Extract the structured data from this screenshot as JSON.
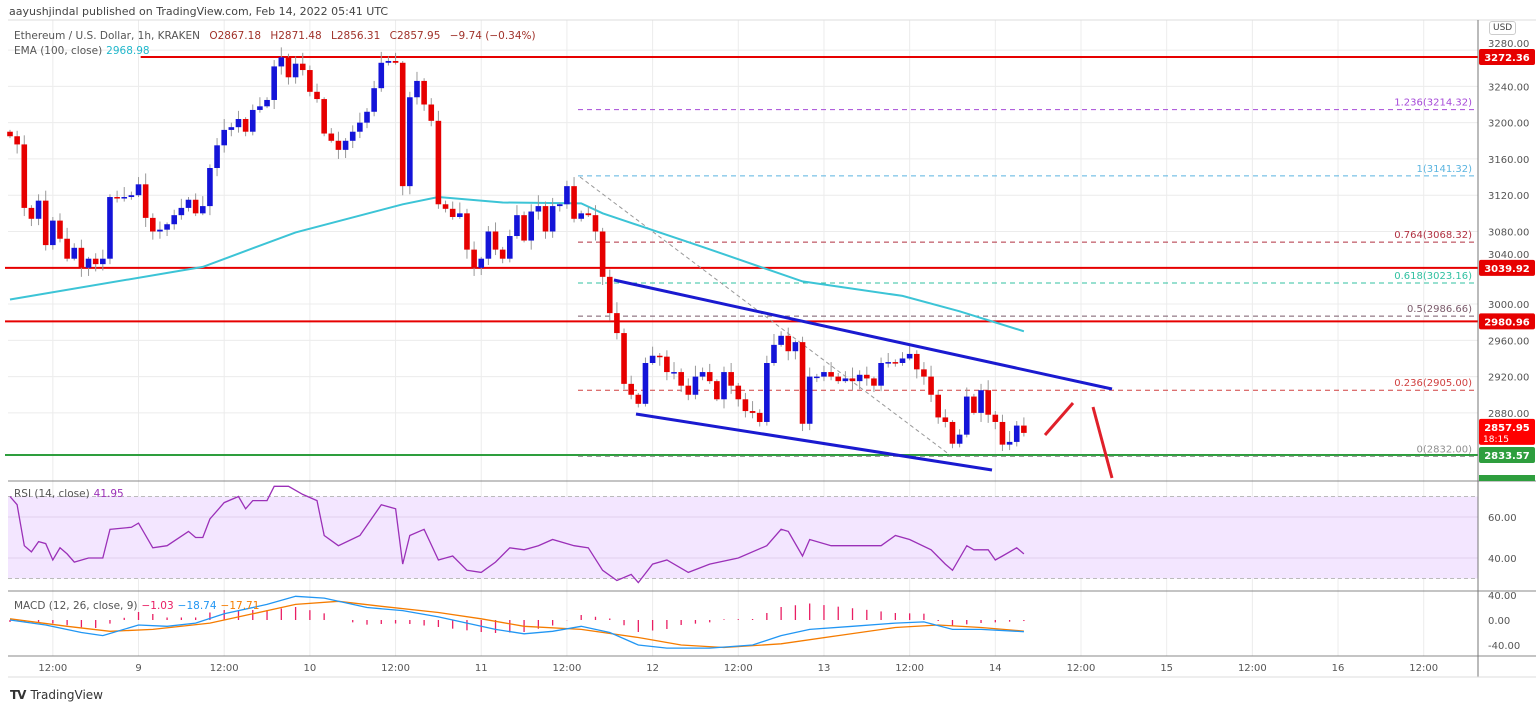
{
  "published": "aayushjindal published on TradingView.com, Feb 14, 2022 05:41 UTC",
  "legend": {
    "symbol": "Ethereum / U.S. Dollar, 1h, KRAKEN",
    "open": "O2867.18",
    "high": "H2871.48",
    "low": "L2856.31",
    "close": "C2857.95",
    "change": "−9.74 (−0.34%)",
    "ema_label": "EMA (100, close)",
    "ema_value": "2968.98"
  },
  "currency": "USD",
  "footer": {
    "brand": "TradingView",
    "logo": "TV"
  },
  "colors": {
    "up": "#1414d8",
    "down": "#e60000",
    "ema": "#3cc4d6",
    "rsi": "#9b30b8",
    "macd": "#2196f3",
    "signal": "#f57c00",
    "hist": "#e91e63",
    "level": "#e60000",
    "support": "#2e9e3e",
    "channel": "#1a1ad0"
  },
  "chart_data": {
    "type": "candlestick",
    "title": "Ethereum / U.S. Dollar, 1h, KRAKEN",
    "interval": "1h",
    "first_open": 3190,
    "closes": [
      3185,
      3176,
      3106,
      3094,
      3114,
      3065,
      3092,
      3072,
      3050,
      3062,
      3040,
      3050,
      3044,
      3050,
      3118,
      3117,
      3118,
      3120,
      3132,
      3095,
      3080,
      3082,
      3088,
      3098,
      3106,
      3115,
      3100,
      3108,
      3150,
      3175,
      3192,
      3195,
      3204,
      3190,
      3214,
      3218,
      3225,
      3262,
      3272,
      3250,
      3265,
      3258,
      3234,
      3226,
      3188,
      3180,
      3170,
      3180,
      3190,
      3200,
      3212,
      3238,
      3266,
      3268,
      3266,
      3130,
      3228,
      3246,
      3220,
      3202,
      3110,
      3105,
      3096,
      3100,
      3060,
      3040,
      3050,
      3080,
      3060,
      3050,
      3075,
      3098,
      3070,
      3102,
      3108,
      3080,
      3108,
      3110,
      3130,
      3094,
      3100,
      3098,
      3080,
      3030,
      2990,
      2968,
      2912,
      2900,
      2890,
      2935,
      2943,
      2942,
      2925,
      2925,
      2910,
      2900,
      2920,
      2925,
      2915,
      2895,
      2925,
      2910,
      2895,
      2882,
      2880,
      2870,
      2935,
      2955,
      2965,
      2948,
      2958,
      2868,
      2920,
      2920,
      2925,
      2920,
      2915,
      2918,
      2915,
      2922,
      2918,
      2910,
      2935,
      2936,
      2935,
      2940,
      2945,
      2928,
      2920,
      2900,
      2875,
      2870,
      2846,
      2856,
      2898,
      2880,
      2905,
      2878,
      2870,
      2845,
      2848,
      2866,
      2857.95
    ],
    "ema100": [
      [
        0,
        3005
      ],
      [
        27,
        3041
      ],
      [
        40,
        3079
      ],
      [
        55,
        3110
      ],
      [
        60,
        3118
      ],
      [
        69,
        3112
      ],
      [
        80,
        3111
      ],
      [
        83,
        3100
      ],
      [
        97,
        3063
      ],
      [
        111,
        3025
      ],
      [
        125,
        3009
      ],
      [
        133,
        2992
      ],
      [
        142,
        2970
      ]
    ],
    "price_axis": {
      "ticks": [
        "2880.00",
        "2920.00",
        "2960.00",
        "3000.00",
        "3040.00",
        "3080.00",
        "3120.00",
        "3160.00",
        "3200.00",
        "3240.00",
        "3280.00"
      ],
      "range": [
        2800,
        3290
      ]
    },
    "time_axis": {
      "labels": [
        "12:00",
        "9",
        "12:00",
        "10",
        "12:00",
        "11",
        "12:00",
        "12",
        "12:00",
        "13",
        "12:00",
        "14",
        "12:00",
        "15",
        "12:00",
        "16",
        "12:00"
      ],
      "first_label_candle": 6,
      "step_candles": 12
    },
    "horizontal_levels": [
      {
        "price": 3272.36,
        "label": "3272.36",
        "kind": "resistance",
        "from_candle": 19
      },
      {
        "price": 3039.92,
        "label": "3039.92",
        "kind": "resistance",
        "from_candle": 0
      },
      {
        "price": 2980.96,
        "label": "2980.96",
        "kind": "resistance",
        "from_candle": 0
      },
      {
        "price": 2833.57,
        "label": "2833.57",
        "kind": "support",
        "from_candle": 0
      }
    ],
    "last_price": {
      "label": "2857.95",
      "countdown": "18:15"
    },
    "fibonacci": [
      {
        "ratio": "1.236",
        "price": 3214.32,
        "label": "1.236(3214.32)",
        "color": "#a64ad8"
      },
      {
        "ratio": "1",
        "price": 3141.32,
        "label": "1(3141.32)",
        "color": "#5ab4e0"
      },
      {
        "ratio": "0.764",
        "price": 3068.32,
        "label": "0.764(3068.32)",
        "color": "#b03040"
      },
      {
        "ratio": "0.618",
        "price": 3023.16,
        "label": "0.618(3023.16)",
        "color": "#30c0a0"
      },
      {
        "ratio": "0.5",
        "price": 2986.66,
        "label": "0.5(2986.66)",
        "color": "#7a5a6a"
      },
      {
        "ratio": "0.236",
        "price": 2905.0,
        "label": "0.236(2905.00)",
        "color": "#d04040"
      },
      {
        "ratio": "0",
        "price": 2832.0,
        "label": "0(2832.00)",
        "color": "#909090"
      }
    ],
    "rsi": {
      "label": "RSI (14, close)",
      "value": "41.95",
      "ticks": [
        "60.00",
        "40.00"
      ],
      "band": [
        30,
        70
      ],
      "points": [
        [
          0,
          70
        ],
        [
          1,
          66
        ],
        [
          2,
          46
        ],
        [
          3,
          43
        ],
        [
          4,
          48
        ],
        [
          5,
          47
        ],
        [
          6,
          39
        ],
        [
          7,
          45
        ],
        [
          8,
          42
        ],
        [
          9,
          38
        ],
        [
          11,
          40
        ],
        [
          13,
          40
        ],
        [
          14,
          54
        ],
        [
          17,
          55
        ],
        [
          18,
          57
        ],
        [
          20,
          45
        ],
        [
          22,
          46
        ],
        [
          25,
          53
        ],
        [
          26,
          50
        ],
        [
          27,
          50
        ],
        [
          28,
          59
        ],
        [
          30,
          67
        ],
        [
          32,
          70
        ],
        [
          33,
          64
        ],
        [
          34,
          68
        ],
        [
          36,
          68
        ],
        [
          37,
          75
        ],
        [
          39,
          75
        ],
        [
          41,
          71
        ],
        [
          43,
          68
        ],
        [
          44,
          51
        ],
        [
          46,
          46
        ],
        [
          49,
          51
        ],
        [
          52,
          66
        ],
        [
          54,
          64
        ],
        [
          55,
          37
        ],
        [
          56,
          51
        ],
        [
          58,
          54
        ],
        [
          60,
          39
        ],
        [
          62,
          41
        ],
        [
          64,
          34
        ],
        [
          66,
          33
        ],
        [
          68,
          38
        ],
        [
          70,
          45
        ],
        [
          72,
          44
        ],
        [
          74,
          46
        ],
        [
          76,
          49
        ],
        [
          79,
          46
        ],
        [
          81,
          45
        ],
        [
          83,
          34
        ],
        [
          85,
          29
        ],
        [
          87,
          32
        ],
        [
          88,
          28
        ],
        [
          90,
          37
        ],
        [
          92,
          39
        ],
        [
          95,
          33
        ],
        [
          98,
          37
        ],
        [
          102,
          40
        ],
        [
          106,
          46
        ],
        [
          108,
          54
        ],
        [
          109,
          53
        ],
        [
          111,
          41
        ],
        [
          112,
          49
        ],
        [
          115,
          46
        ],
        [
          119,
          46
        ],
        [
          122,
          46
        ],
        [
          124,
          51
        ],
        [
          126,
          49
        ],
        [
          129,
          44
        ],
        [
          131,
          37
        ],
        [
          132,
          34
        ],
        [
          134,
          46
        ],
        [
          135,
          44
        ],
        [
          137,
          44
        ],
        [
          138,
          39
        ],
        [
          139,
          41
        ],
        [
          141,
          45
        ],
        [
          142,
          42
        ]
      ]
    },
    "macd": {
      "label": "MACD (12, 26, close, 9)",
      "hist_value": "−1.03",
      "macd_value": "−18.74",
      "signal_value": "−17.71",
      "ticks": [
        "40.00",
        "0.00",
        "-40.00"
      ],
      "macd_points": [
        [
          0,
          0
        ],
        [
          5,
          -8
        ],
        [
          10,
          -20
        ],
        [
          13,
          -25
        ],
        [
          18,
          -8
        ],
        [
          22,
          -10
        ],
        [
          26,
          -5
        ],
        [
          30,
          10
        ],
        [
          36,
          25
        ],
        [
          40,
          38
        ],
        [
          44,
          35
        ],
        [
          50,
          20
        ],
        [
          55,
          15
        ],
        [
          60,
          5
        ],
        [
          64,
          -5
        ],
        [
          68,
          -15
        ],
        [
          72,
          -22
        ],
        [
          76,
          -18
        ],
        [
          80,
          -10
        ],
        [
          84,
          -20
        ],
        [
          88,
          -40
        ],
        [
          92,
          -45
        ],
        [
          98,
          -45
        ],
        [
          104,
          -40
        ],
        [
          108,
          -25
        ],
        [
          112,
          -15
        ],
        [
          118,
          -10
        ],
        [
          124,
          -5
        ],
        [
          128,
          -3
        ],
        [
          132,
          -15
        ],
        [
          136,
          -15
        ],
        [
          142,
          -18.74
        ]
      ],
      "signal_points": [
        [
          0,
          2
        ],
        [
          8,
          -10
        ],
        [
          14,
          -18
        ],
        [
          20,
          -15
        ],
        [
          28,
          -5
        ],
        [
          34,
          10
        ],
        [
          40,
          25
        ],
        [
          46,
          30
        ],
        [
          52,
          22
        ],
        [
          60,
          12
        ],
        [
          66,
          2
        ],
        [
          72,
          -10
        ],
        [
          80,
          -15
        ],
        [
          88,
          -28
        ],
        [
          94,
          -40
        ],
        [
          100,
          -44
        ],
        [
          108,
          -38
        ],
        [
          116,
          -25
        ],
        [
          124,
          -12
        ],
        [
          130,
          -8
        ],
        [
          136,
          -12
        ],
        [
          142,
          -17.71
        ]
      ]
    }
  }
}
